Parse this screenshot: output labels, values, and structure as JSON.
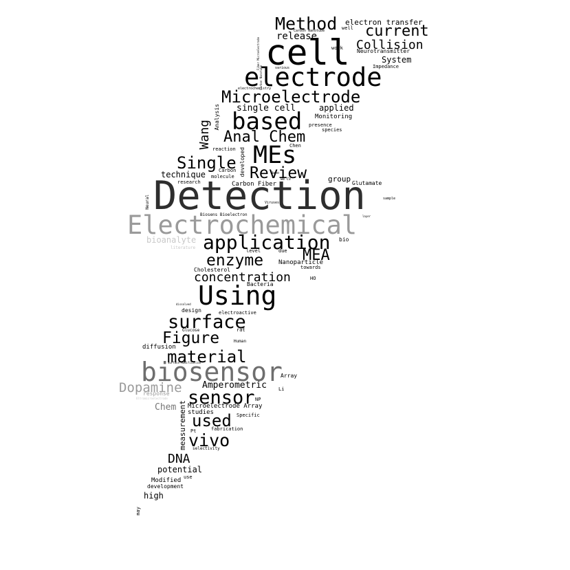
{
  "words": [
    {
      "text": "Detection",
      "color": "#2e2e2e"
    },
    {
      "text": "cell",
      "color": "#000000"
    },
    {
      "text": "Electrochemical",
      "color": "#9a9a9a"
    },
    {
      "text": "biosensor",
      "color": "#6e6e6e"
    },
    {
      "text": "electrode",
      "color": "#000000"
    },
    {
      "text": "Using",
      "color": "#000000"
    },
    {
      "text": "MEs",
      "color": "#000000"
    },
    {
      "text": "based",
      "color": "#000000"
    },
    {
      "text": "application",
      "color": "#000000"
    },
    {
      "text": "surface",
      "color": "#000000"
    },
    {
      "text": "sensor",
      "color": "#000000"
    },
    {
      "text": "Microelectrode",
      "color": "#000000"
    },
    {
      "text": "Method",
      "color": "#000000"
    },
    {
      "text": "current",
      "color": "#000000"
    },
    {
      "text": "Single",
      "color": "#000000"
    },
    {
      "text": "Review",
      "color": "#000000"
    },
    {
      "text": "Anal Chem",
      "color": "#000000"
    },
    {
      "text": "enzyme",
      "color": "#000000"
    },
    {
      "text": "material",
      "color": "#000000"
    },
    {
      "text": "Figure",
      "color": "#000000"
    },
    {
      "text": "used",
      "color": "#000000"
    },
    {
      "text": "vivo",
      "color": "#000000"
    },
    {
      "text": "Dopamine",
      "color": "#9a9a9a"
    },
    {
      "text": "MEA",
      "color": "#000000"
    },
    {
      "text": "Collision",
      "color": "#000000"
    },
    {
      "text": "concentration",
      "color": "#000000"
    },
    {
      "text": "DNA",
      "color": "#000000"
    },
    {
      "text": "Wang",
      "color": "#000000"
    },
    {
      "text": "release",
      "color": "#000000"
    },
    {
      "text": "single cell",
      "color": "#000000"
    },
    {
      "text": "Amperometric",
      "color": "#000000"
    },
    {
      "text": "potential",
      "color": "#000000"
    },
    {
      "text": "bioanalyte",
      "color": "#c8c8c8"
    },
    {
      "text": "electron transfer",
      "color": "#000000"
    },
    {
      "text": "applied",
      "color": "#000000"
    },
    {
      "text": "System",
      "color": "#000000"
    },
    {
      "text": "technique",
      "color": "#000000"
    },
    {
      "text": "Chem",
      "color": "#777777"
    },
    {
      "text": "group",
      "color": "#000000"
    },
    {
      "text": "high",
      "color": "#000000"
    },
    {
      "text": "measurement",
      "color": "#000000"
    },
    {
      "text": "Carbon Fiber",
      "color": "#000000"
    },
    {
      "text": "Monitoring",
      "color": "#000000"
    },
    {
      "text": "studies",
      "color": "#000000"
    },
    {
      "text": "Microelectrode Array",
      "color": "#000000"
    },
    {
      "text": "Nanoparticle",
      "color": "#000000"
    },
    {
      "text": "diffusion",
      "color": "#000000"
    },
    {
      "text": "Modified",
      "color": "#000000"
    },
    {
      "text": "development",
      "color": "#000000"
    },
    {
      "text": "Glutamate",
      "color": "#000000"
    },
    {
      "text": "Analysis",
      "color": "#000000"
    },
    {
      "text": "developed",
      "color": "#000000"
    },
    {
      "text": "design",
      "color": "#000000"
    },
    {
      "text": "Cholesterol",
      "color": "#000000"
    },
    {
      "text": "Neurotransmitter",
      "color": "#000000"
    },
    {
      "text": "Impedance",
      "color": "#000000"
    },
    {
      "text": "presence",
      "color": "#000000"
    },
    {
      "text": "species",
      "color": "#000000"
    },
    {
      "text": "Chen",
      "color": "#000000"
    },
    {
      "text": "reaction",
      "color": "#000000"
    },
    {
      "text": "Carbon",
      "color": "#000000"
    },
    {
      "text": "molecule",
      "color": "#000000"
    },
    {
      "text": "research",
      "color": "#000000"
    },
    {
      "text": "level",
      "color": "#000000"
    },
    {
      "text": "due",
      "color": "#000000"
    },
    {
      "text": "towards",
      "color": "#000000"
    },
    {
      "text": "Bacteria",
      "color": "#000000"
    },
    {
      "text": "HO",
      "color": "#000000"
    },
    {
      "text": "bio",
      "color": "#000000"
    },
    {
      "text": "electroactive",
      "color": "#000000"
    },
    {
      "text": "Glucose",
      "color": "#000000"
    },
    {
      "text": "rat",
      "color": "#000000"
    },
    {
      "text": "Human",
      "color": "#000000"
    },
    {
      "text": "Array",
      "color": "#000000"
    },
    {
      "text": "Li",
      "color": "#000000"
    },
    {
      "text": "NP",
      "color": "#000000"
    },
    {
      "text": "response",
      "color": "#9a9a9a"
    },
    {
      "text": "Specific",
      "color": "#000000"
    },
    {
      "text": "Pt",
      "color": "#000000"
    },
    {
      "text": "fabrication",
      "color": "#000000"
    },
    {
      "text": "selectivity",
      "color": "#000000"
    },
    {
      "text": "use",
      "color": "#000000"
    },
    {
      "text": "may",
      "color": "#000000"
    },
    {
      "text": "well",
      "color": "#000000"
    },
    {
      "text": "work",
      "color": "#000000"
    },
    {
      "text": "Carbon Nanotube",
      "color": "#000000"
    },
    {
      "text": "various",
      "color": "#000000"
    },
    {
      "text": "electrochemistry",
      "color": "#000000"
    },
    {
      "text": "Neural",
      "color": "#000000"
    },
    {
      "text": "Viruses",
      "color": "#000000"
    },
    {
      "text": "Biosens Bioelectron",
      "color": "#000000"
    },
    {
      "text": "literature",
      "color": "#c8c8c8"
    },
    {
      "text": "sample",
      "color": "#000000"
    },
    {
      "text": "layer",
      "color": "#000000"
    },
    {
      "text": "dissolved",
      "color": "#000000"
    },
    {
      "text": "Surface Modification",
      "color": "#000000"
    },
    {
      "text": "Ultramicroelectrode",
      "color": "#c8c8c8"
    },
    {
      "text": "Fiber Microelectrode",
      "color": "#000000"
    },
    {
      "text": "Carbon Nanotube",
      "color": "#000000"
    },
    {
      "text": "Nano",
      "color": "#000000"
    },
    {
      "text": "we CV",
      "color": "#000000"
    }
  ]
}
